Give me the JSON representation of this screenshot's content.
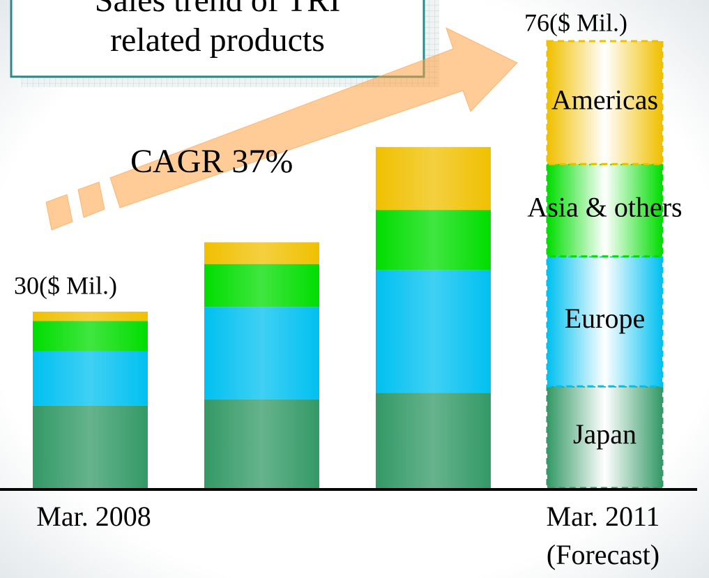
{
  "chart_data": {
    "type": "stacked_bar",
    "title": [
      "Sales trend of TRI",
      "related products"
    ],
    "categories": [
      "Mar. 2008",
      null,
      null,
      "Mar. 2011"
    ],
    "series": [
      {
        "name": "Japan",
        "color": "#339966",
        "values": [
          14,
          15.1,
          16.2,
          17.3
        ]
      },
      {
        "name": "Europe",
        "color": "#00c0f0",
        "values": [
          9.3,
          15.7,
          20.9,
          22.1
        ]
      },
      {
        "name": "Asia & others",
        "color": "#00dd00",
        "values": [
          5.1,
          7.3,
          10.2,
          15.7
        ]
      },
      {
        "name": "Americas",
        "color": "#f0c000",
        "values": [
          1.6,
          3.7,
          10.7,
          20.9
        ]
      }
    ],
    "annotations": [
      "30($ Mil.)",
      "76($ Mil.)",
      "CAGR 37%",
      "(Forecast)"
    ],
    "ylim": [
      0,
      83
    ]
  }
}
